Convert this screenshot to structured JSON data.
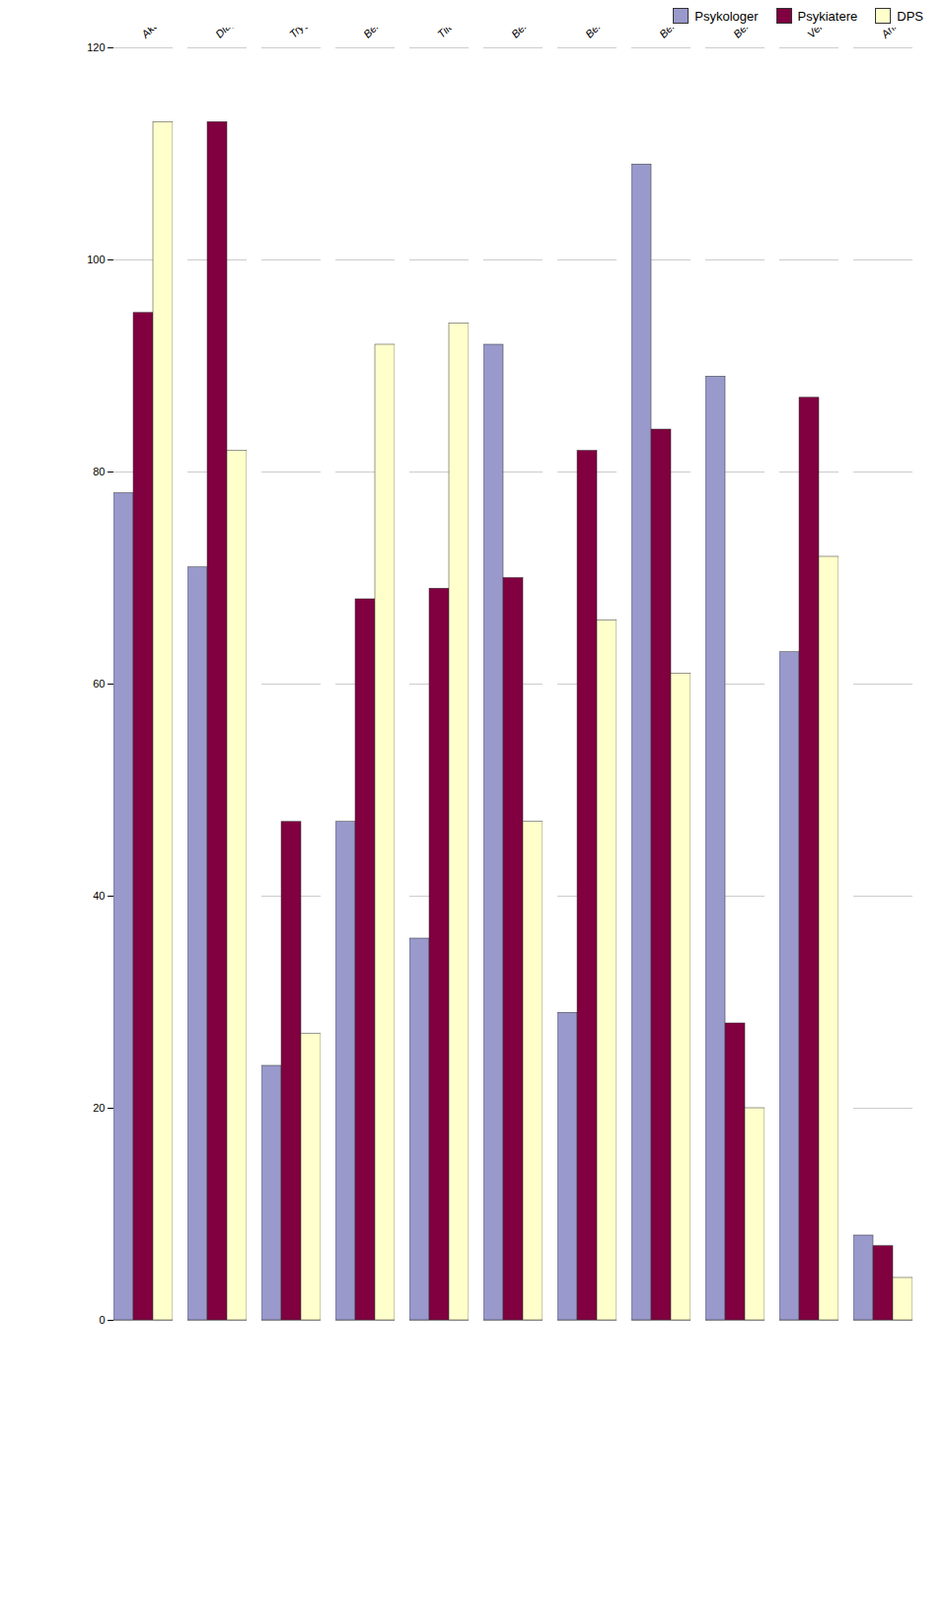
{
  "chart_data": {
    "type": "bar",
    "categories": [
      "Akutt hjelp v / kriser",
      "Diagnostikk/ utredning",
      "Trygdeerklæringer",
      "Behandling av rus i tillegg til psykisk lidelse",
      "Tiltak ved suicidalfare",
      "Behandling av somatiserende lidelser",
      "Behandling av psykoseproblematikk",
      "Behandling av angst og depresjon",
      "Behandling av lettere psykiske lidelser",
      "Veiledning i rådgivning til fastlegene",
      "Annet"
    ],
    "series": [
      {
        "name": "Psykologer",
        "color": "#9999cc",
        "values": [
          78,
          71,
          24,
          47,
          36,
          92,
          29,
          109,
          89,
          63,
          8
        ]
      },
      {
        "name": "Psykiatere",
        "color": "#800040",
        "values": [
          95,
          113,
          47,
          68,
          69,
          70,
          82,
          84,
          28,
          87,
          7
        ]
      },
      {
        "name": "DPS",
        "color": "#ffffcc",
        "values": [
          113,
          82,
          27,
          92,
          94,
          47,
          66,
          61,
          20,
          72,
          4
        ]
      }
    ],
    "ylim": [
      0,
      120
    ],
    "yticks": [
      0,
      20,
      40,
      60,
      80,
      100,
      120
    ],
    "grid": true,
    "legend": "upper right"
  }
}
